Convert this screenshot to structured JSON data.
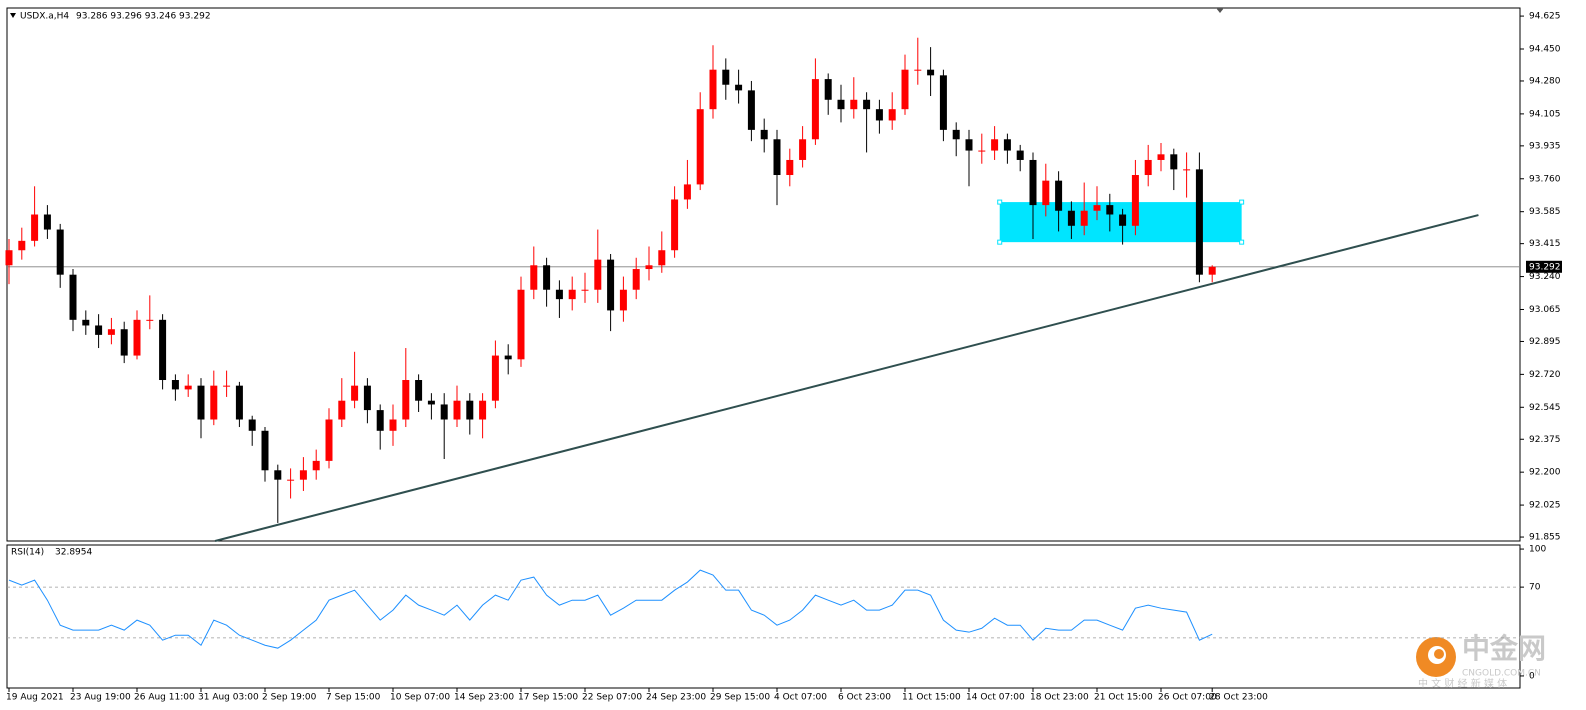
{
  "chart_data": [
    {
      "type": "candlestick",
      "header": {
        "symbol": "USDX.a,H4",
        "quote": "93.286 93.296 93.246 93.292"
      },
      "categories": [
        "19 Aug 2021",
        null,
        null,
        null,
        null,
        "23 Aug 19:00",
        null,
        null,
        null,
        null,
        "26 Aug 11:00",
        null,
        null,
        null,
        null,
        "31 Aug 03:00",
        null,
        null,
        null,
        null,
        "2 Sep 19:00",
        null,
        null,
        null,
        null,
        "7 Sep 15:00",
        null,
        null,
        null,
        null,
        "10 Sep 07:00",
        null,
        null,
        null,
        null,
        "14 Sep 23:00",
        null,
        null,
        null,
        null,
        "17 Sep 15:00",
        null,
        null,
        null,
        null,
        "22 Sep 07:00",
        null,
        null,
        null,
        null,
        "24 Sep 23:00",
        null,
        null,
        null,
        null,
        "29 Sep 15:00",
        null,
        null,
        null,
        null,
        "4 Oct 07:00",
        null,
        null,
        null,
        null,
        "6 Oct 23:00",
        null,
        null,
        null,
        null,
        "11 Oct 15:00",
        null,
        null,
        null,
        null,
        "14 Oct 07:00",
        null,
        null,
        null,
        null,
        "18 Oct 23:00",
        null,
        null,
        null,
        null,
        "21 Oct 15:00",
        null,
        null,
        null,
        null,
        "26 Oct 07:00",
        null,
        null,
        null,
        "28 Oct 23:00"
      ],
      "open": [
        93.3,
        93.38,
        93.43,
        93.57,
        93.49,
        93.25,
        93.01,
        92.98,
        92.93,
        92.96,
        92.82,
        93.01,
        93.01,
        92.69,
        92.64,
        92.66,
        92.48,
        92.66,
        92.66,
        92.48,
        92.42,
        92.21,
        92.16,
        92.16,
        92.21,
        92.26,
        92.48,
        92.58,
        92.66,
        92.53,
        92.42,
        92.48,
        92.69,
        92.58,
        92.56,
        92.48,
        92.58,
        92.48,
        92.58,
        92.82,
        92.8,
        93.17,
        93.3,
        93.17,
        93.12,
        93.17,
        93.17,
        93.33,
        93.06,
        93.17,
        93.28,
        93.3,
        93.38,
        93.65,
        93.73,
        94.13,
        94.34,
        94.26,
        94.23,
        94.02,
        93.97,
        93.78,
        93.86,
        93.97,
        94.29,
        94.18,
        94.13,
        94.18,
        94.13,
        94.07,
        94.13,
        94.34,
        94.34,
        94.31,
        94.02,
        93.97,
        93.91,
        93.91,
        93.97,
        93.91,
        93.86,
        93.62,
        93.75,
        93.59,
        93.51,
        93.59,
        93.62,
        93.57,
        93.51,
        93.78,
        93.86,
        93.89,
        93.81,
        93.81,
        93.25
      ],
      "high": [
        93.44,
        93.5,
        93.72,
        93.62,
        93.52,
        93.28,
        93.06,
        93.04,
        93.02,
        93.0,
        93.06,
        93.14,
        93.04,
        92.72,
        92.72,
        92.7,
        92.74,
        92.74,
        92.68,
        92.5,
        92.44,
        92.24,
        92.22,
        92.28,
        92.32,
        92.54,
        92.7,
        92.84,
        92.7,
        92.56,
        92.56,
        92.86,
        92.72,
        92.62,
        92.62,
        92.66,
        92.62,
        92.62,
        92.9,
        92.88,
        93.24,
        93.4,
        93.34,
        93.22,
        93.24,
        93.26,
        93.49,
        93.36,
        93.24,
        93.34,
        93.4,
        93.48,
        93.72,
        93.86,
        94.22,
        94.47,
        94.4,
        94.34,
        94.28,
        94.08,
        94.02,
        93.92,
        94.04,
        94.4,
        94.32,
        94.26,
        94.3,
        94.22,
        94.18,
        94.22,
        94.42,
        94.51,
        94.46,
        94.34,
        94.06,
        94.02,
        94.0,
        94.04,
        94.0,
        93.94,
        93.9,
        93.84,
        93.8,
        93.64,
        93.74,
        93.72,
        93.68,
        93.6,
        93.86,
        93.94,
        93.95,
        93.92,
        93.9,
        93.9,
        93.3
      ],
      "low": [
        93.2,
        93.33,
        93.4,
        93.44,
        93.18,
        92.95,
        92.93,
        92.86,
        92.88,
        92.78,
        92.8,
        92.96,
        92.64,
        92.58,
        92.6,
        92.38,
        92.45,
        92.6,
        92.44,
        92.34,
        92.15,
        91.93,
        92.06,
        92.1,
        92.16,
        92.22,
        92.44,
        92.54,
        92.46,
        92.32,
        92.34,
        92.44,
        92.52,
        92.48,
        92.27,
        92.44,
        92.4,
        92.38,
        92.54,
        92.72,
        92.76,
        93.12,
        93.08,
        93.02,
        93.06,
        93.1,
        93.1,
        92.95,
        93.0,
        93.12,
        93.22,
        93.26,
        93.34,
        93.6,
        93.7,
        94.08,
        94.18,
        94.16,
        93.96,
        93.9,
        93.62,
        93.72,
        93.82,
        93.94,
        94.1,
        94.06,
        94.08,
        93.9,
        94.0,
        94.02,
        94.1,
        94.26,
        94.2,
        93.96,
        93.88,
        93.72,
        93.84,
        93.86,
        93.84,
        93.8,
        93.44,
        93.56,
        93.48,
        93.44,
        93.46,
        93.54,
        93.48,
        93.41,
        93.46,
        93.72,
        93.8,
        93.7,
        93.66,
        93.21,
        93.21
      ],
      "close": [
        93.38,
        93.43,
        93.57,
        93.49,
        93.25,
        93.01,
        92.98,
        92.93,
        92.96,
        92.82,
        93.01,
        93.01,
        92.69,
        92.64,
        92.66,
        92.48,
        92.66,
        92.66,
        92.48,
        92.42,
        92.21,
        92.16,
        92.16,
        92.21,
        92.26,
        92.48,
        92.58,
        92.66,
        92.53,
        92.42,
        92.48,
        92.69,
        92.58,
        92.56,
        92.48,
        92.58,
        92.48,
        92.58,
        92.82,
        92.8,
        93.17,
        93.3,
        93.17,
        93.12,
        93.17,
        93.17,
        93.33,
        93.06,
        93.17,
        93.28,
        93.3,
        93.38,
        93.65,
        93.73,
        94.13,
        94.34,
        94.26,
        94.23,
        94.02,
        93.97,
        93.78,
        93.86,
        93.97,
        94.29,
        94.18,
        94.13,
        94.18,
        94.13,
        94.07,
        94.13,
        94.34,
        94.34,
        94.31,
        94.02,
        93.97,
        93.91,
        93.91,
        93.97,
        93.91,
        93.86,
        93.62,
        93.75,
        93.59,
        93.51,
        93.59,
        93.62,
        93.57,
        93.51,
        93.78,
        93.86,
        93.89,
        93.81,
        93.81,
        93.25,
        93.292
      ],
      "up_color": "#ff0000",
      "down_color": "#000000",
      "ylim": [
        91.834,
        94.668
      ],
      "yticks": [
        91.855,
        92.025,
        {
          "value": 92.2,
          "label": "92.200"
        },
        92.375,
        92.545,
        {
          "value": 92.72,
          "label": "92.720"
        },
        92.895,
        93.065,
        {
          "value": 93.24,
          "label": "93.240"
        },
        93.415,
        93.585,
        {
          "value": 93.76,
          "label": "93.760"
        },
        93.935,
        94.105,
        {
          "value": 94.28,
          "label": "94.280"
        },
        {
          "value": 94.45,
          "label": "94.450"
        },
        94.625
      ],
      "trendline": {
        "index": [
          16.1,
          114.8
        ],
        "price": [
          91.834,
          93.567
        ],
        "color": "#2f4f4f"
      },
      "zone": {
        "index": [
          77.4,
          96.3
        ],
        "price": [
          93.423,
          93.636
        ],
        "color": "#00e5ff"
      }
    },
    {
      "type": "line",
      "title": "RSI(14)",
      "values": [
        75.5,
        71.6,
        75.5,
        59.7,
        40.0,
        36.1,
        36.1,
        36.1,
        40.0,
        36.1,
        44.0,
        40.0,
        28.2,
        32.1,
        32.1,
        24.2,
        44.0,
        40.0,
        32.1,
        28.2,
        24.2,
        21.9,
        28.2,
        36.1,
        44.0,
        59.7,
        63.7,
        67.6,
        55.8,
        44.0,
        51.9,
        63.7,
        55.8,
        51.9,
        47.9,
        55.8,
        44.0,
        55.8,
        63.7,
        59.7,
        75.5,
        77.9,
        63.7,
        55.8,
        59.7,
        59.7,
        63.7,
        47.9,
        53.4,
        59.7,
        59.7,
        59.7,
        67.6,
        74.0,
        83.4,
        79.5,
        67.6,
        67.6,
        51.9,
        47.9,
        40.0,
        44.0,
        51.9,
        63.7,
        59.7,
        55.8,
        59.7,
        51.9,
        51.9,
        55.8,
        67.6,
        67.6,
        63.7,
        44.0,
        36.1,
        34.5,
        37.6,
        45.5,
        40.0,
        40.0,
        28.2,
        37.6,
        36.1,
        36.1,
        44.0,
        44.0,
        40.0,
        36.1,
        53.4,
        55.8,
        53.4,
        51.9,
        50.3,
        28.2,
        32.8954
      ],
      "color": "#1e90ff",
      "ylim": [
        -9.5,
        103.2
      ],
      "yticks": [
        0,
        70,
        100
      ],
      "levels": [
        70,
        30
      ]
    }
  ],
  "watermark": {
    "brand": "中金网",
    "site": "CNGOLD.COM.CN",
    "slogan": "中 文 财 经 新 媒 体"
  }
}
